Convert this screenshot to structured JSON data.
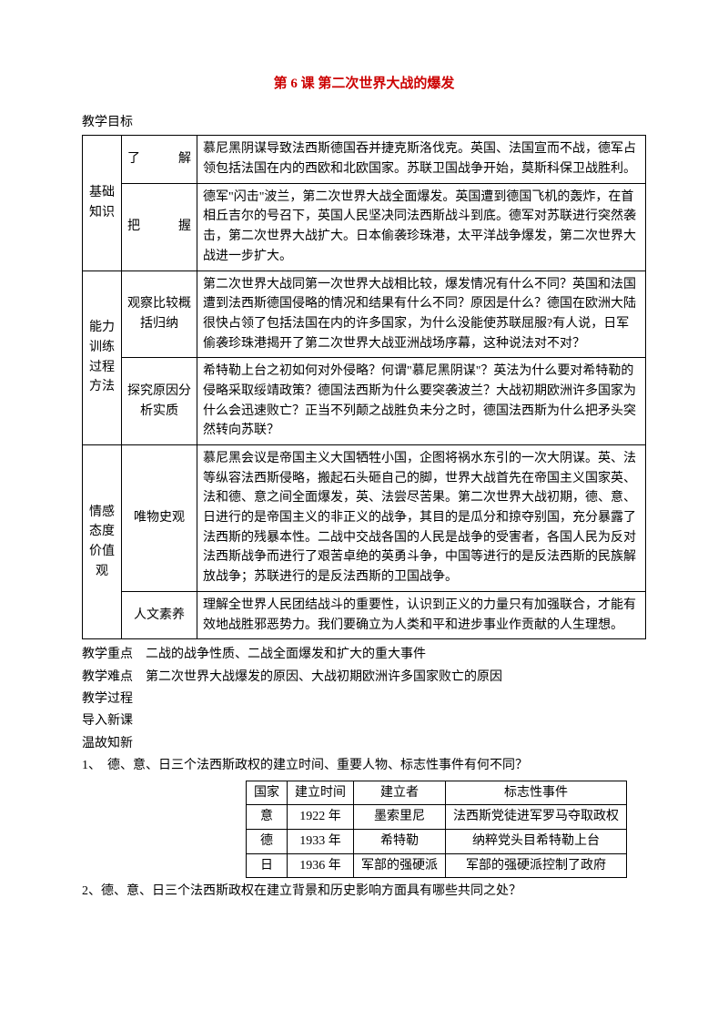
{
  "title": "第 6 课  第二次世界大战的爆发",
  "subhead_goals": "教学目标",
  "table_main": {
    "rows": [
      {
        "cat": "基础知识",
        "sub": "了　　解",
        "body": "慕尼黑阴谋导致法西斯德国吞并捷克斯洛伐克。英国、法国宣而不战，德军占领包括法国在内的西欧和北欧国家。苏联卫国战争开始，莫斯科保卫战胜利。"
      },
      {
        "cat": "",
        "sub": "把　　握",
        "body": "德军\"闪击\"波兰，第二次世界大战全面爆发。英国遭到德国飞机的轰炸，在首相丘吉尔的号召下，英国人民坚决同法西斯战斗到底。德军对苏联进行突然袭击，第二次世界大战扩大。日本偷袭珍珠港，太平洋战争爆发，第二次世界大战进一步扩大。"
      },
      {
        "cat": "能力训练过程方法",
        "sub": "观察比较概括归纳",
        "body": "第二次世界大战同第一次世界大战相比较，爆发情况有什么不同？英国和法国遭到法西斯德国侵略的情况和结果有什么不同？原因是什么？德国在欧洲大陆很快占领了包括法国在内的许多国家，为什么没能使苏联屈服?有人说，日军偷袭珍珠港揭开了第二次世界大战亚洲战场序幕，这种说法对不对？"
      },
      {
        "cat": "",
        "sub": "探究原因分析实质",
        "body": "希特勒上台之初如何对外侵略？何谓\"慕尼黑阴谋\"？英法为什么要对希特勒的侵略采取绥靖政策？德国法西斯为什么要突袭波兰？大战初期欧洲许多国家为什么会迅速败亡？正当不列颠之战胜负未分之时，德国法西斯为什么把矛头突然转向苏联？"
      },
      {
        "cat": "情感态度价值观",
        "sub": "唯物史观",
        "body": "慕尼黑会议是帝国主义大国牺牲小国，企图将祸水东引的一次大阴谋。英、法等纵容法西斯侵略，搬起石头砸自己的脚，世界大战首先在帝国主义国家英、法和德、意之间全面爆发，英、法尝尽苦果。第二次世界大战初期，德、意、日进行的是帝国主义的非正义的战争，其目的是瓜分和掠夺别国，充分暴露了法西斯的残暴本性。二战中交战各国的人民是战争的受害者，各国人民为反对法西斯战争而进行了艰苦卓绝的英勇斗争，中国等进行的是反法西斯的民族解放战争；苏联进行的是反法西斯的卫国战争。"
      },
      {
        "cat": "",
        "sub": "人文素养",
        "body": "理解全世界人民团结战斗的重要性，认识到正义的力量只有加强联合，才能有效地战胜邪恶势力。我们要确立为人类和平和进步事业作贡献的人生理想。"
      }
    ]
  },
  "after_lines": [
    "教学重点　二战的战争性质、二战全面爆发和扩大的重大事件",
    "教学难点　第二次世界大战爆发的原因、大战初期欧洲许多国家败亡的原因",
    "教学过程",
    "导入新课",
    "温故知新"
  ],
  "q1": "1、　德、意、日三个法西斯政权的建立时间、重要人物、标志性事件有何不同？",
  "small_table": {
    "head": [
      "国家",
      "建立时间",
      "建立者",
      "标志性事件"
    ],
    "rows": [
      [
        "意",
        "1922 年",
        "墨索里尼",
        "法西斯党徒进军罗马夺取政权"
      ],
      [
        "德",
        "1933 年",
        "希特勒",
        "纳粹党头目希特勒上台"
      ],
      [
        "日",
        "1936 年",
        "军部的强硬派",
        "军部的强硬派控制了政府"
      ]
    ]
  },
  "q2": "2、德、意、日三个法西斯政权在建立背景和历史影响方面具有哪些共同之处？"
}
